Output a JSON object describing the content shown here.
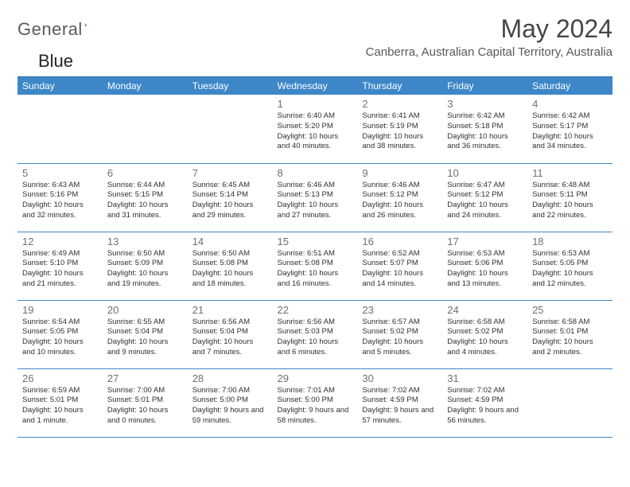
{
  "brand": {
    "part1": "General",
    "part2": "Blue"
  },
  "title": "May 2024",
  "location": "Canberra, Australian Capital Territory, Australia",
  "colors": {
    "header_bg": "#3d87c9",
    "header_border": "#2a6aa5",
    "row_border": "#3d87c9",
    "daynum": "#707070",
    "body_text": "#303030",
    "brand_gray": "#5b5b5b",
    "brand_blue": "#2a75bb"
  },
  "dayHeaders": [
    "Sunday",
    "Monday",
    "Tuesday",
    "Wednesday",
    "Thursday",
    "Friday",
    "Saturday"
  ],
  "weeks": [
    [
      null,
      null,
      null,
      {
        "n": "1",
        "sr": "6:40 AM",
        "ss": "5:20 PM",
        "dl": "10 hours and 40 minutes."
      },
      {
        "n": "2",
        "sr": "6:41 AM",
        "ss": "5:19 PM",
        "dl": "10 hours and 38 minutes."
      },
      {
        "n": "3",
        "sr": "6:42 AM",
        "ss": "5:18 PM",
        "dl": "10 hours and 36 minutes."
      },
      {
        "n": "4",
        "sr": "6:42 AM",
        "ss": "5:17 PM",
        "dl": "10 hours and 34 minutes."
      }
    ],
    [
      {
        "n": "5",
        "sr": "6:43 AM",
        "ss": "5:16 PM",
        "dl": "10 hours and 32 minutes."
      },
      {
        "n": "6",
        "sr": "6:44 AM",
        "ss": "5:15 PM",
        "dl": "10 hours and 31 minutes."
      },
      {
        "n": "7",
        "sr": "6:45 AM",
        "ss": "5:14 PM",
        "dl": "10 hours and 29 minutes."
      },
      {
        "n": "8",
        "sr": "6:46 AM",
        "ss": "5:13 PM",
        "dl": "10 hours and 27 minutes."
      },
      {
        "n": "9",
        "sr": "6:46 AM",
        "ss": "5:12 PM",
        "dl": "10 hours and 26 minutes."
      },
      {
        "n": "10",
        "sr": "6:47 AM",
        "ss": "5:12 PM",
        "dl": "10 hours and 24 minutes."
      },
      {
        "n": "11",
        "sr": "6:48 AM",
        "ss": "5:11 PM",
        "dl": "10 hours and 22 minutes."
      }
    ],
    [
      {
        "n": "12",
        "sr": "6:49 AM",
        "ss": "5:10 PM",
        "dl": "10 hours and 21 minutes."
      },
      {
        "n": "13",
        "sr": "6:50 AM",
        "ss": "5:09 PM",
        "dl": "10 hours and 19 minutes."
      },
      {
        "n": "14",
        "sr": "6:50 AM",
        "ss": "5:08 PM",
        "dl": "10 hours and 18 minutes."
      },
      {
        "n": "15",
        "sr": "6:51 AM",
        "ss": "5:08 PM",
        "dl": "10 hours and 16 minutes."
      },
      {
        "n": "16",
        "sr": "6:52 AM",
        "ss": "5:07 PM",
        "dl": "10 hours and 14 minutes."
      },
      {
        "n": "17",
        "sr": "6:53 AM",
        "ss": "5:06 PM",
        "dl": "10 hours and 13 minutes."
      },
      {
        "n": "18",
        "sr": "6:53 AM",
        "ss": "5:05 PM",
        "dl": "10 hours and 12 minutes."
      }
    ],
    [
      {
        "n": "19",
        "sr": "6:54 AM",
        "ss": "5:05 PM",
        "dl": "10 hours and 10 minutes."
      },
      {
        "n": "20",
        "sr": "6:55 AM",
        "ss": "5:04 PM",
        "dl": "10 hours and 9 minutes."
      },
      {
        "n": "21",
        "sr": "6:56 AM",
        "ss": "5:04 PM",
        "dl": "10 hours and 7 minutes."
      },
      {
        "n": "22",
        "sr": "6:56 AM",
        "ss": "5:03 PM",
        "dl": "10 hours and 6 minutes."
      },
      {
        "n": "23",
        "sr": "6:57 AM",
        "ss": "5:02 PM",
        "dl": "10 hours and 5 minutes."
      },
      {
        "n": "24",
        "sr": "6:58 AM",
        "ss": "5:02 PM",
        "dl": "10 hours and 4 minutes."
      },
      {
        "n": "25",
        "sr": "6:58 AM",
        "ss": "5:01 PM",
        "dl": "10 hours and 2 minutes."
      }
    ],
    [
      {
        "n": "26",
        "sr": "6:59 AM",
        "ss": "5:01 PM",
        "dl": "10 hours and 1 minute."
      },
      {
        "n": "27",
        "sr": "7:00 AM",
        "ss": "5:01 PM",
        "dl": "10 hours and 0 minutes."
      },
      {
        "n": "28",
        "sr": "7:00 AM",
        "ss": "5:00 PM",
        "dl": "9 hours and 59 minutes."
      },
      {
        "n": "29",
        "sr": "7:01 AM",
        "ss": "5:00 PM",
        "dl": "9 hours and 58 minutes."
      },
      {
        "n": "30",
        "sr": "7:02 AM",
        "ss": "4:59 PM",
        "dl": "9 hours and 57 minutes."
      },
      {
        "n": "31",
        "sr": "7:02 AM",
        "ss": "4:59 PM",
        "dl": "9 hours and 56 minutes."
      },
      null
    ]
  ],
  "labels": {
    "sunrise": "Sunrise: ",
    "sunset": "Sunset: ",
    "daylight": "Daylight: "
  }
}
